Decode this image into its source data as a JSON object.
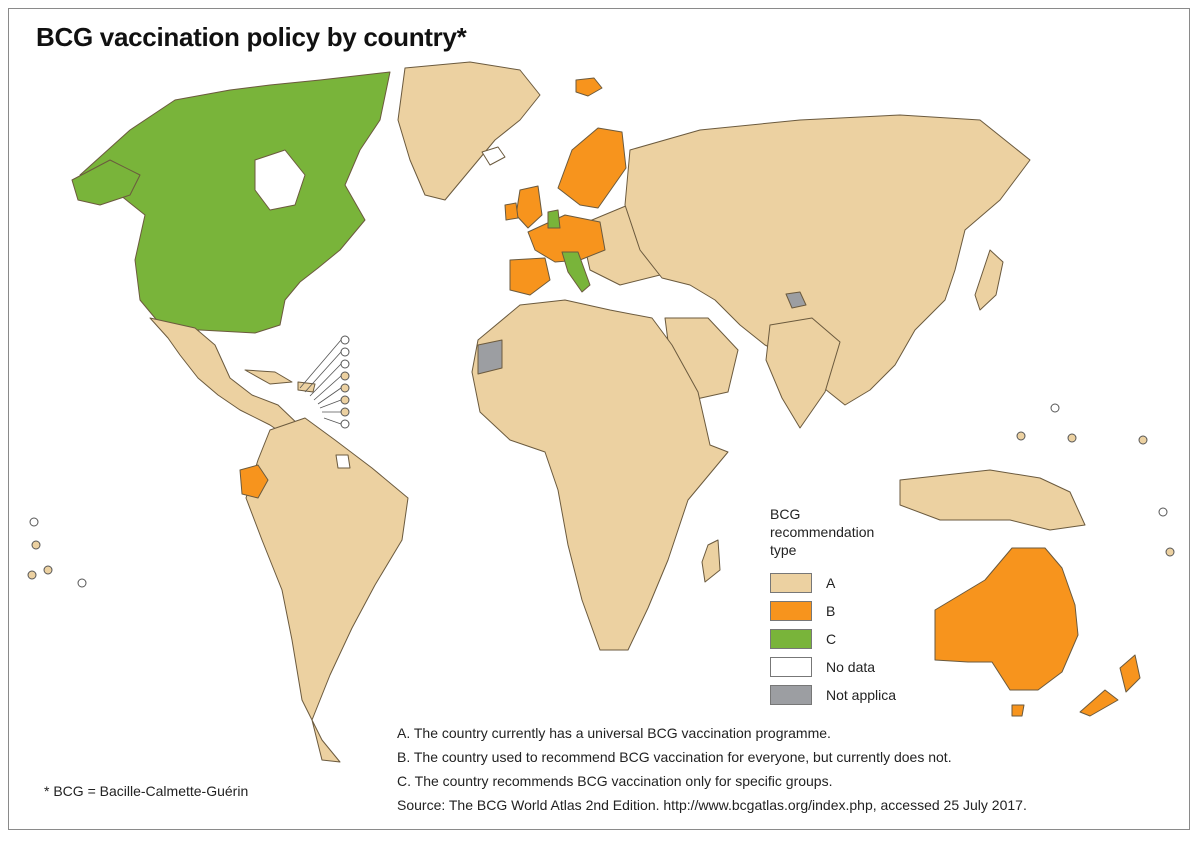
{
  "title": "BCG vaccination policy by country*",
  "colors": {
    "A": "#ecd1a1",
    "B": "#f7941d",
    "C": "#79b43a",
    "no_data": "#ffffff",
    "not_applicable": "#9c9ea2",
    "border": "#6b5a3e"
  },
  "legend": {
    "title_line1": "BCG",
    "title_line2": "recommendation",
    "title_line3": "type",
    "items": [
      {
        "label": "A",
        "color": "#ecd1a1"
      },
      {
        "label": "B",
        "color": "#f7941d"
      },
      {
        "label": "C",
        "color": "#79b43a"
      },
      {
        "label": "No data",
        "color": "#ffffff"
      },
      {
        "label": "Not applica",
        "color": "#9c9ea2"
      }
    ]
  },
  "notes": {
    "a": "A. The country currently has a universal BCG vaccination programme.",
    "b": "B. The country used to recommend BCG vaccination for everyone, but currently does not.",
    "c": "C. The country recommends BCG vaccination only for specific groups.",
    "source": "Source: The BCG World Atlas 2nd Edition. http://www.bcgatlas.org/index.php, accessed 25 July 2017."
  },
  "footnote": "* BCG = Bacille-Calmette-Guérin"
}
